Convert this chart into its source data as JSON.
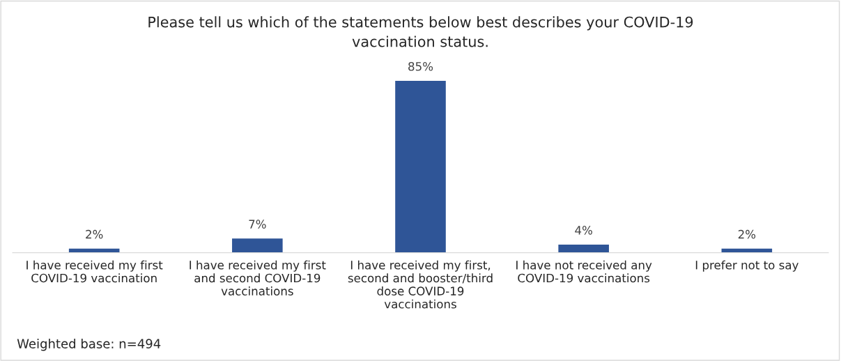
{
  "chart_data": {
    "type": "bar",
    "title": "Please tell us which of the statements below best describes your COVID-19\nvaccination status.",
    "categories": [
      "I have received my first\nCOVID-19 vaccination",
      "I have received my first\nand second COVID-19\nvaccinations",
      "I have received my first,\nsecond and booster/third\ndose COVID-19\nvaccinations",
      "I have not received any\nCOVID-19 vaccinations",
      "I prefer not to say"
    ],
    "values": [
      2,
      7,
      85,
      4,
      2
    ],
    "value_labels": [
      "2%",
      "7%",
      "85%",
      "4%",
      "2%"
    ],
    "color": "#2f5597",
    "grid": false,
    "legend": false,
    "annotations": [
      "Weighted base: n=494"
    ]
  }
}
